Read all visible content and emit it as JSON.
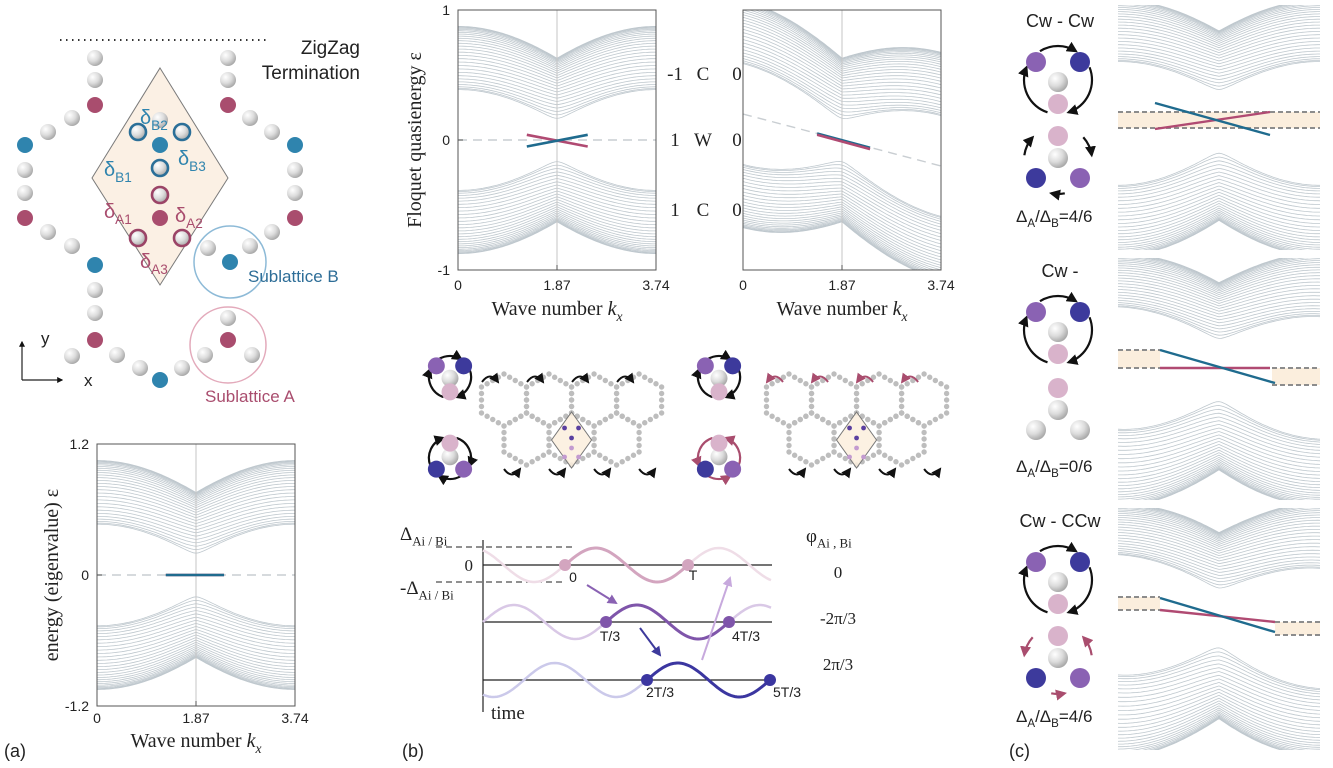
{
  "panel_a": {
    "zigzag": "ZigZag",
    "termination": "Termination",
    "deltas": [
      {
        "symbol": "δ",
        "sub": "B2"
      },
      {
        "symbol": "δ",
        "sub": "B3"
      },
      {
        "symbol": "δ",
        "sub": "B1"
      },
      {
        "symbol": "δ",
        "sub": "A1"
      },
      {
        "symbol": "δ",
        "sub": "A2"
      },
      {
        "symbol": "δ",
        "sub": "A3"
      }
    ],
    "sublattice_b": "Sublattice B",
    "sublattice_a": "Sublattice A",
    "axis_y": "y",
    "axis_x": "x",
    "tag": "(a)"
  },
  "chart_data": [
    {
      "type": "line",
      "ylabel": "energy (eigenvalue) ε",
      "xlabel": [
        "Wave number ",
        "k",
        "x"
      ],
      "xlim": [
        0,
        3.74
      ],
      "ylim": [
        -1.2,
        1.2
      ],
      "xticks": [
        0,
        1.87,
        3.74
      ],
      "yticks": [
        -1.2,
        0,
        1.2
      ],
      "x_grid": true,
      "series": [
        {
          "color": "#c9ced2",
          "dashed": true,
          "x": [
            0,
            3.74
          ],
          "values": [
            0,
            0
          ]
        },
        {
          "color": "#b04a72",
          "x": [
            1.3,
            2.4
          ],
          "values": [
            0,
            0
          ]
        },
        {
          "color": "#1f6b8e",
          "x": [
            1.3,
            2.4
          ],
          "values": [
            0,
            0
          ]
        }
      ]
    },
    {
      "type": "line",
      "ylabel": "Floquet quasienergy ε",
      "xlabel": [
        "Wave number ",
        "k",
        "x"
      ],
      "xlim": [
        0,
        3.74
      ],
      "ylim": [
        -1,
        1
      ],
      "xticks": [
        0,
        1.87,
        3.74
      ],
      "yticks": [
        -1,
        0,
        1
      ],
      "x_grid": true,
      "series": [
        {
          "color": "#c9ced2",
          "dashed": true,
          "x": [
            0,
            3.74
          ],
          "values": [
            0,
            0
          ]
        },
        {
          "color": "#b04a72",
          "x": [
            1.3,
            2.45
          ],
          "values": [
            0.04,
            -0.05
          ]
        },
        {
          "color": "#1f6b8e",
          "x": [
            1.3,
            2.45
          ],
          "values": [
            -0.05,
            0.04
          ]
        }
      ]
    },
    {
      "type": "line",
      "xlabel": [
        "Wave number ",
        "k",
        "x"
      ],
      "xlim": [
        0,
        3.74
      ],
      "ylim": [
        -1,
        1
      ],
      "xticks": [
        0,
        1.87,
        3.74
      ],
      "x_grid": true,
      "series": [
        {
          "color": "#c9ced2",
          "dashed": true,
          "x": [
            0,
            3.74
          ],
          "values": [
            0.2,
            -0.2
          ]
        },
        {
          "color": "#1f6b8e",
          "x": [
            1.4,
            2.4
          ],
          "values": [
            0.05,
            -0.06
          ]
        },
        {
          "color": "#b04a72",
          "x": [
            1.4,
            2.4
          ],
          "values": [
            0.04,
            -0.07
          ]
        }
      ]
    }
  ],
  "panel_b": {
    "phase_table": [
      [
        -1,
        "C",
        0
      ],
      [
        1,
        "W",
        0
      ],
      [
        1,
        "C",
        0
      ]
    ],
    "timing": {
      "delta": [
        "Δ",
        "Ai / Bi"
      ],
      "zero": 0,
      "neg_delta": [
        "-Δ",
        "Ai / Bi"
      ],
      "phi": [
        "φ",
        "Ai , Bi"
      ],
      "phases": [
        0,
        "-2π/3",
        "2π/3"
      ],
      "times": [
        "0",
        "T",
        "T/3",
        "4T/3",
        "2T/3",
        "5T/3"
      ],
      "time": "time"
    },
    "tag": "(b)"
  },
  "panel_c": {
    "cases": [
      {
        "title": "Cw - Cw",
        "ratio": [
          "Δ",
          "A",
          "/Δ",
          "B",
          "=4/6"
        ]
      },
      {
        "title": "Cw -",
        "ratio": [
          "Δ",
          "A",
          "/Δ",
          "B",
          "=0/6"
        ]
      },
      {
        "title": "Cw - CCw",
        "ratio": [
          "Δ",
          "A",
          "/Δ",
          "B",
          "=4/6"
        ]
      }
    ],
    "tag": "(c)"
  }
}
